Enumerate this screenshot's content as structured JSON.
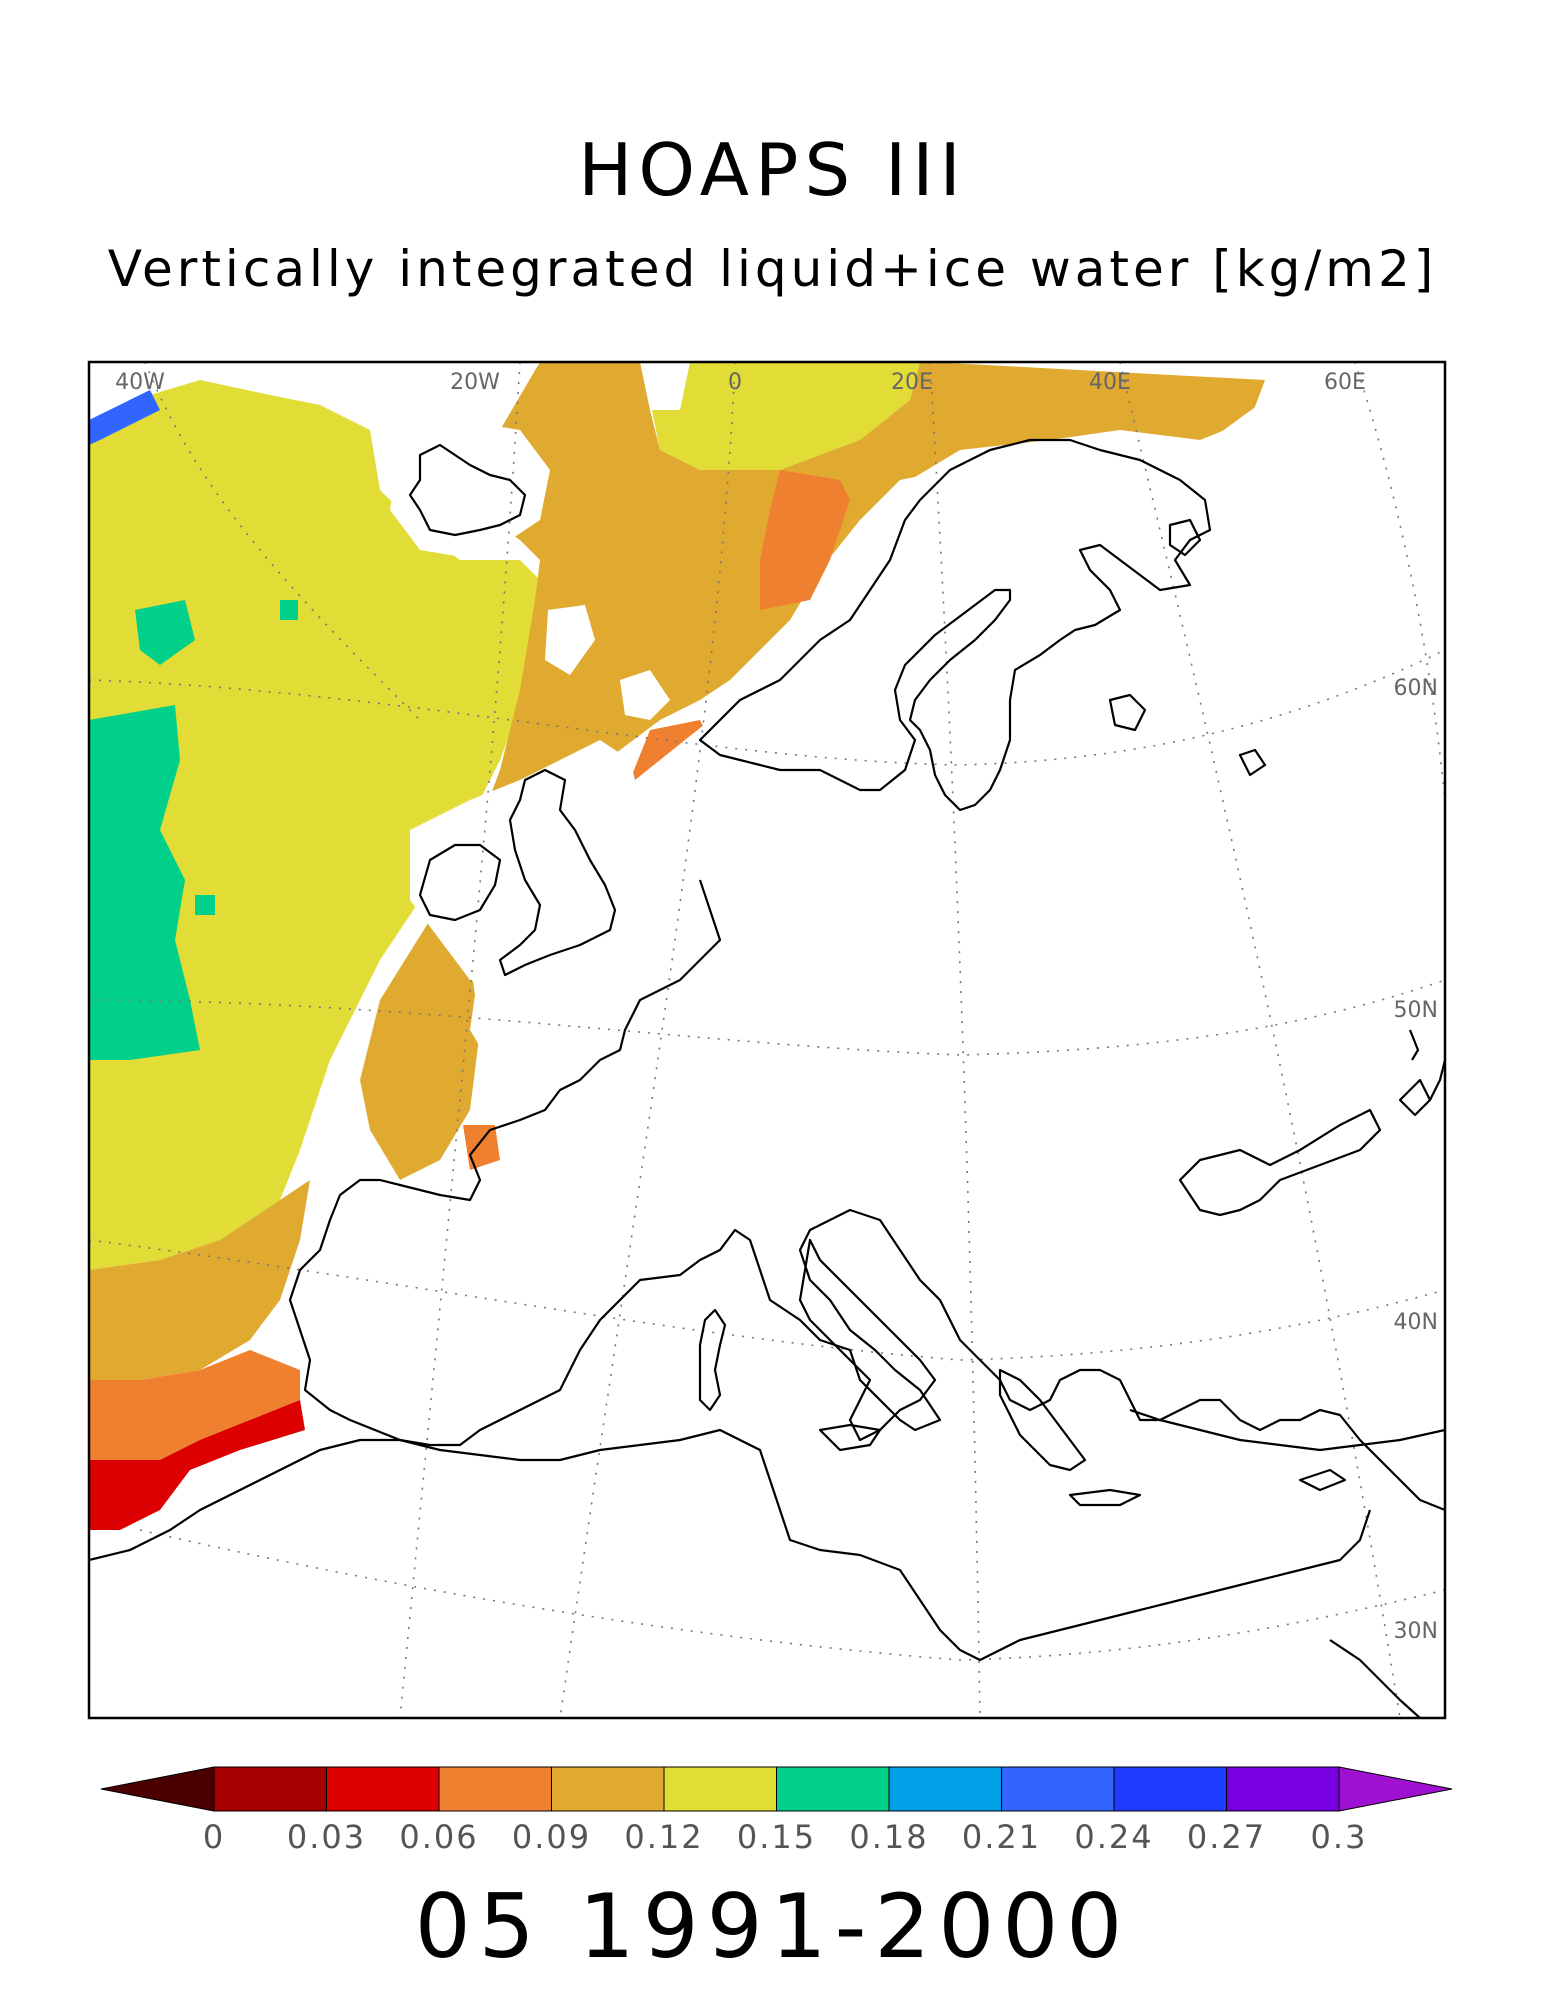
{
  "title": "HOAPS III",
  "subtitle": "Vertically integrated liquid+ice water [kg/m2]",
  "period": "05 1991-2000",
  "colors": {
    "background": "#ffffff",
    "frame": "#000000",
    "coastline": "#000000",
    "graticule": "#777777"
  },
  "map": {
    "longitude_labels": [
      "40W",
      "20W",
      "0",
      "20E",
      "40E",
      "60E"
    ],
    "latitude_labels": [
      "60N",
      "50N",
      "40N",
      "30N"
    ]
  },
  "colorbar": {
    "labels": [
      "0",
      "0.03",
      "0.06",
      "0.09",
      "0.12",
      "0.15",
      "0.18",
      "0.21",
      "0.24",
      "0.27",
      "0.3"
    ],
    "under_color": "#4a0000",
    "over_color": "#a010d0",
    "bins": [
      {
        "range": "0-0.03",
        "color": "#a50000"
      },
      {
        "range": "0.03-0.06",
        "color": "#dc0000"
      },
      {
        "range": "0.06-0.09",
        "color": "#ee8030"
      },
      {
        "range": "0.09-0.12",
        "color": "#e0aa30"
      },
      {
        "range": "0.12-0.15",
        "color": "#e2dc36"
      },
      {
        "range": "0.15-0.18",
        "color": "#00d08a"
      },
      {
        "range": "0.18-0.21",
        "color": "#00a0e6"
      },
      {
        "range": "0.21-0.24",
        "color": "#3264ff"
      },
      {
        "range": "0.24-0.27",
        "color": "#1e3cff"
      },
      {
        "range": "0.27-0.3",
        "color": "#7800e0"
      }
    ]
  }
}
